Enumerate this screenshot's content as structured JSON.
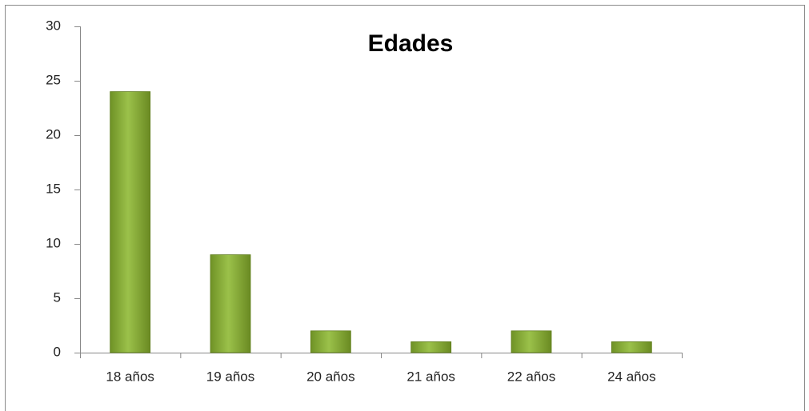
{
  "chart_data": {
    "type": "bar",
    "title": "Edades",
    "categories": [
      "18 años",
      "19 años",
      "20 años",
      "21 años",
      "22 años",
      "24 años"
    ],
    "values": [
      24,
      9,
      2,
      1,
      2,
      1
    ],
    "color": "#9bc14a",
    "ylim": [
      0,
      30
    ],
    "yticks": [
      0,
      5,
      10,
      15,
      20,
      25,
      30
    ],
    "grid": false
  }
}
